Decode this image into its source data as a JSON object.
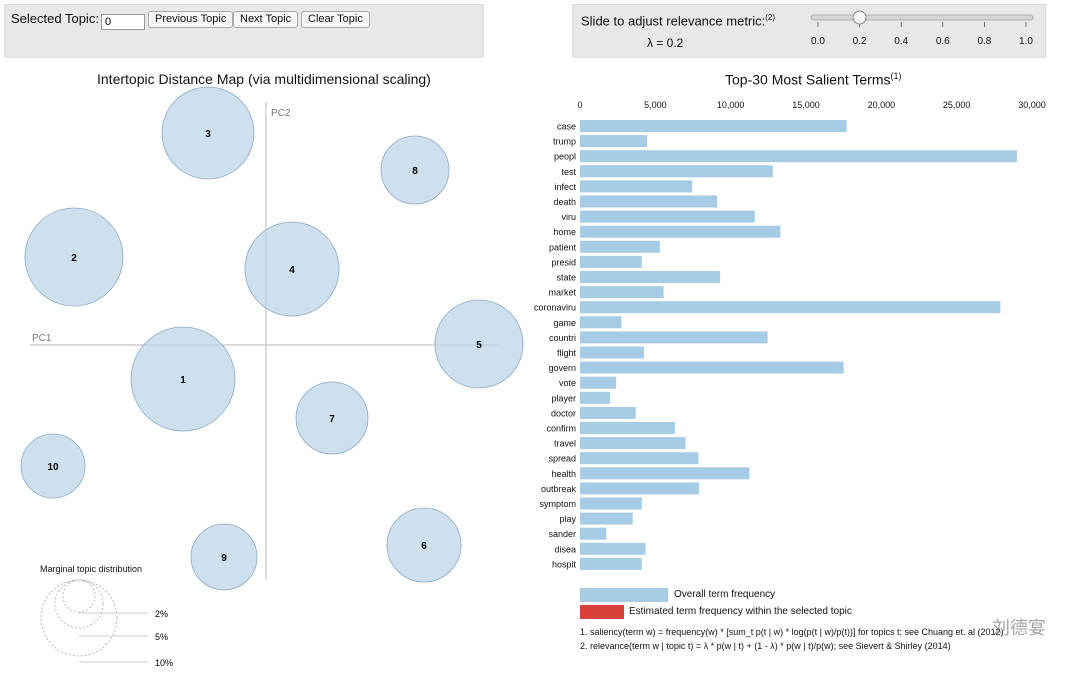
{
  "controls": {
    "selected_topic_label": "Selected Topic:",
    "selected_topic_value": "0",
    "prev_label": "Previous Topic",
    "next_label": "Next Topic",
    "clear_label": "Clear Topic",
    "slider_label": "Slide to adjust relevance metric:",
    "slider_sup": "(2)",
    "lambda_text": "λ = 0.2",
    "lambda_value": 0.2,
    "slider_ticks": [
      "0.0",
      "0.2",
      "0.4",
      "0.6",
      "0.8",
      "1.0"
    ]
  },
  "map": {
    "title": "Intertopic Distance Map (via multidimensional scaling)",
    "pc1": "PC1",
    "pc2": "PC2",
    "topics": [
      "1",
      "2",
      "3",
      "4",
      "5",
      "6",
      "7",
      "8",
      "9",
      "10"
    ],
    "marginal_title": "Marginal topic distribution",
    "marginal_levels": [
      "2%",
      "5%",
      "10%"
    ]
  },
  "bars": {
    "title": "Top-30 Most Salient Terms",
    "title_sup": "(1)",
    "legend_overall": "Overall term frequency",
    "legend_estimated": "Estimated term frequency within the selected topic",
    "note1": "1. saliency(term w) = frequency(w) * [sum_t p(t | w) * log(p(t | w)/p(t))] for topics t; see Chuang et. al (2012)",
    "note2": "2. relevance(term w | topic t) = λ * p(w | t) + (1 - λ) * p(w | t)/p(w); see Sievert & Shirley (2014)",
    "bar_color": "#a6cbe4",
    "estimated_color": "#d9403a"
  },
  "chart_data": {
    "type": "bar",
    "orientation": "horizontal",
    "title": "Top-30 Most Salient Terms",
    "xlim": [
      0,
      30000
    ],
    "tick_values": [
      0,
      5000,
      10000,
      15000,
      20000,
      25000,
      30000
    ],
    "ticks": [
      "0",
      "5,000",
      "10,000",
      "15,000",
      "20,000",
      "25,000",
      "30,000"
    ],
    "categories": [
      "case",
      "trump",
      "peopl",
      "test",
      "infect",
      "death",
      "viru",
      "home",
      "patient",
      "presid",
      "state",
      "market",
      "coronaviru",
      "game",
      "countri",
      "flight",
      "govern",
      "vote",
      "player",
      "doctor",
      "confirm",
      "travel",
      "spread",
      "health",
      "outbreak",
      "symptom",
      "play",
      "sander",
      "disea",
      "hospit"
    ],
    "values": [
      17700,
      4450,
      29000,
      12800,
      7450,
      9100,
      11600,
      13300,
      5300,
      4100,
      9300,
      5550,
      27900,
      2750,
      12450,
      4250,
      17500,
      2400,
      2000,
      3700,
      6300,
      7000,
      7850,
      11250,
      7900,
      4100,
      3500,
      1750,
      4350,
      4100
    ]
  },
  "watermark": "刘德宴"
}
